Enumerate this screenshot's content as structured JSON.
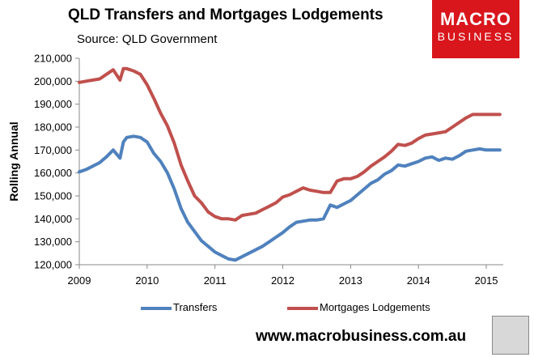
{
  "brand": {
    "line1": "MACRO",
    "line2": "BUSINESS",
    "url": "www.macrobusiness.com.au"
  },
  "chart_data": {
    "type": "line",
    "title": "QLD Transfers and Mortgages Lodgements",
    "subtitle": "Source: QLD Government",
    "xlabel": "",
    "ylabel": "Rolling Annual",
    "xlim": [
      2009,
      2015.25
    ],
    "ylim": [
      120000,
      210000
    ],
    "x_ticks": [
      "2009",
      "2010",
      "2011",
      "2012",
      "2013",
      "2014",
      "2015"
    ],
    "y_ticks": [
      "120,000",
      "130,000",
      "140,000",
      "150,000",
      "160,000",
      "170,000",
      "180,000",
      "190,000",
      "200,000",
      "210,000"
    ],
    "grid": false,
    "legend_position": "bottom",
    "series": [
      {
        "name": "Transfers",
        "color": "#4f81bd",
        "x": [
          2009.0,
          2009.1,
          2009.2,
          2009.3,
          2009.4,
          2009.5,
          2009.6,
          2009.65,
          2009.7,
          2009.8,
          2009.9,
          2010.0,
          2010.1,
          2010.2,
          2010.3,
          2010.4,
          2010.5,
          2010.6,
          2010.7,
          2010.8,
          2010.9,
          2011.0,
          2011.1,
          2011.2,
          2011.3,
          2011.4,
          2011.5,
          2011.6,
          2011.7,
          2011.8,
          2011.9,
          2012.0,
          2012.1,
          2012.2,
          2012.3,
          2012.4,
          2012.5,
          2012.6,
          2012.7,
          2012.8,
          2012.9,
          2013.0,
          2013.1,
          2013.2,
          2013.3,
          2013.4,
          2013.5,
          2013.6,
          2013.7,
          2013.8,
          2013.9,
          2014.0,
          2014.1,
          2014.2,
          2014.3,
          2014.4,
          2014.5,
          2014.6,
          2014.7,
          2014.8,
          2014.9,
          2015.0,
          2015.1,
          2015.2
        ],
        "values": [
          160500,
          161500,
          163000,
          164500,
          167000,
          170000,
          166500,
          173500,
          175500,
          176000,
          175500,
          173500,
          168500,
          165000,
          160000,
          153000,
          144500,
          138500,
          134500,
          130500,
          128000,
          125500,
          124000,
          122500,
          122000,
          123500,
          125000,
          126500,
          128000,
          130000,
          132000,
          134000,
          136500,
          138500,
          139000,
          139500,
          139500,
          140000,
          146000,
          145000,
          146500,
          148000,
          150500,
          153000,
          155500,
          157000,
          159500,
          161000,
          163500,
          163000,
          164000,
          165000,
          166500,
          167000,
          165500,
          166500,
          166000,
          167500,
          169500,
          170000,
          170500,
          170000,
          170000,
          170000
        ]
      },
      {
        "name": "Mortgages Lodgements",
        "color": "#c0504d",
        "x": [
          2009.0,
          2009.1,
          2009.2,
          2009.3,
          2009.4,
          2009.5,
          2009.6,
          2009.65,
          2009.7,
          2009.8,
          2009.9,
          2010.0,
          2010.1,
          2010.2,
          2010.3,
          2010.4,
          2010.5,
          2010.6,
          2010.7,
          2010.8,
          2010.9,
          2011.0,
          2011.1,
          2011.2,
          2011.3,
          2011.4,
          2011.5,
          2011.6,
          2011.7,
          2011.8,
          2011.9,
          2012.0,
          2012.1,
          2012.2,
          2012.3,
          2012.4,
          2012.5,
          2012.6,
          2012.7,
          2012.8,
          2012.9,
          2013.0,
          2013.1,
          2013.2,
          2013.3,
          2013.4,
          2013.5,
          2013.6,
          2013.7,
          2013.8,
          2013.9,
          2014.0,
          2014.1,
          2014.2,
          2014.3,
          2014.4,
          2014.5,
          2014.6,
          2014.7,
          2014.8,
          2014.9,
          2015.0,
          2015.1,
          2015.2
        ],
        "values": [
          199500,
          200000,
          200500,
          201000,
          203000,
          205000,
          200500,
          205500,
          205500,
          204500,
          203000,
          198500,
          192500,
          186000,
          180500,
          173000,
          163500,
          156500,
          150000,
          147000,
          143000,
          141000,
          140000,
          140000,
          139500,
          141500,
          142000,
          142500,
          144000,
          145500,
          147000,
          149500,
          150500,
          152000,
          153500,
          152500,
          152000,
          151500,
          151500,
          156500,
          157500,
          157500,
          158500,
          160500,
          163000,
          165000,
          167000,
          169500,
          172500,
          172000,
          173000,
          175000,
          176500,
          177000,
          177500,
          178000,
          180000,
          182000,
          184000,
          185500,
          185500,
          185500,
          185500,
          185500
        ]
      }
    ]
  }
}
